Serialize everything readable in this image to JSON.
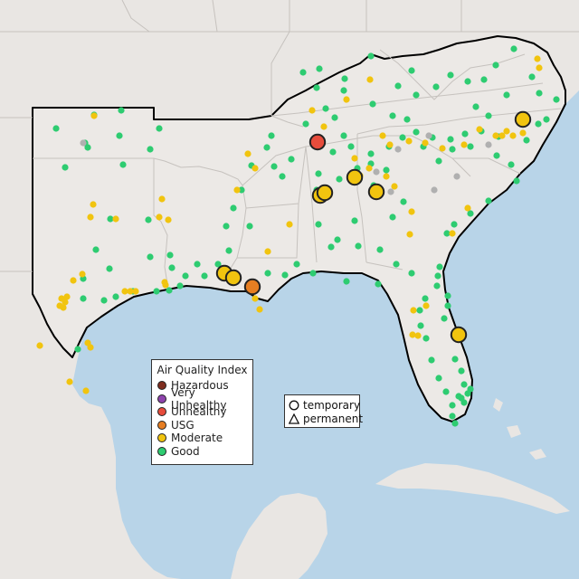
{
  "legend": {
    "title": "Air Quality Index",
    "items": [
      {
        "label": "Hazardous",
        "color": "#7e2d1f"
      },
      {
        "label": "Very Unhealthy",
        "color": "#8e44ad"
      },
      {
        "label": "Unhealthy",
        "color": "#e74c3c"
      },
      {
        "label": "USG",
        "color": "#e67e22"
      },
      {
        "label": "Moderate",
        "color": "#f1c40f"
      },
      {
        "label": "Good",
        "color": "#2ecc71"
      }
    ]
  },
  "shape_legend": {
    "items": [
      {
        "label": "temporary",
        "icon": "circle-icon"
      },
      {
        "label": "permanent",
        "icon": "triangle-icon"
      }
    ]
  },
  "colors": {
    "water": "#b8d4e8",
    "land": "#e9e6e3",
    "region_land": "#ece9e6",
    "state_border": "#c6c2be",
    "region_border": "#000000",
    "sensor_outline": "#222222",
    "inactive": "#b0b0b0"
  }
}
